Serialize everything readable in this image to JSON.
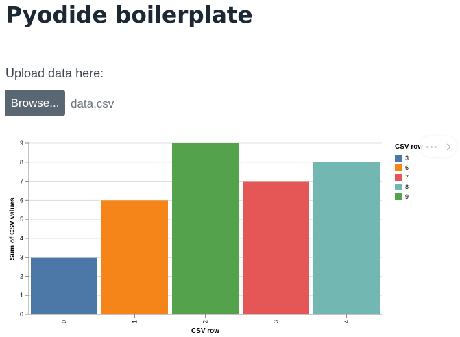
{
  "page": {
    "title": "Pyodide boilerplate",
    "upload_label": "Upload data here:",
    "browse_label": "Browse...",
    "file_name": "data.csv"
  },
  "colors": {
    "title": "#1c2833",
    "button_bg": "#5a6772",
    "grid": "#dddddd",
    "axis": "#888888"
  },
  "icons": {
    "actions_menu": "ellipsis-icon",
    "actions_chevron": "chevron-right-icon"
  },
  "chart_data": {
    "type": "bar",
    "categories": [
      "0",
      "1",
      "2",
      "3",
      "4"
    ],
    "values": [
      3,
      6,
      9,
      7,
      8
    ],
    "colors": [
      "#4c78a8",
      "#f58518",
      "#54a24b",
      "#e45756",
      "#72b7b2"
    ],
    "xlabel": "CSV row",
    "ylabel": "Sum of CSV values",
    "ylim": [
      0,
      9
    ],
    "yticks": [
      0,
      1,
      2,
      3,
      4,
      5,
      6,
      7,
      8,
      9
    ],
    "grid": true,
    "legend": {
      "title": "CSV row",
      "placement": "right",
      "entries": [
        {
          "label": "3",
          "color": "#4c78a8"
        },
        {
          "label": "6",
          "color": "#f58518"
        },
        {
          "label": "7",
          "color": "#e45756"
        },
        {
          "label": "8",
          "color": "#72b7b2"
        },
        {
          "label": "9",
          "color": "#54a24b"
        }
      ]
    }
  }
}
